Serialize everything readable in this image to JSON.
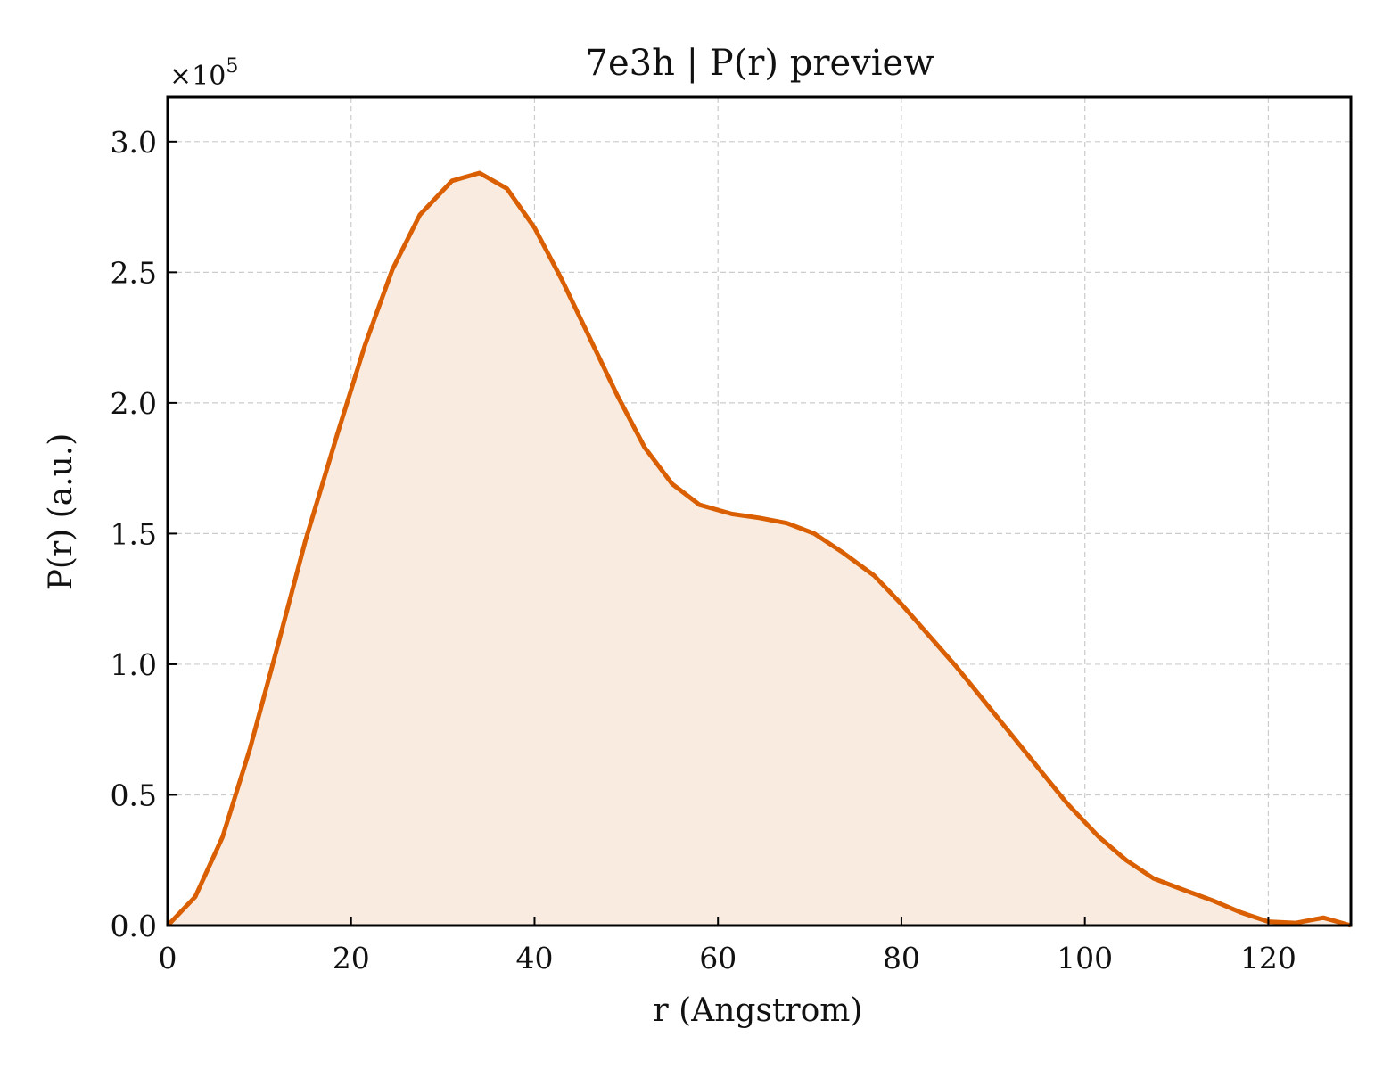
{
  "chart_data": {
    "type": "area",
    "title": "7e3h | P(r) preview",
    "xlabel": "r (Angstrom)",
    "ylabel": "P(r) (a.u.)",
    "y_multiplier_label": {
      "base": "×10",
      "exp": "5"
    },
    "xlim": [
      0,
      129
    ],
    "ylim": [
      0,
      3.17
    ],
    "x_ticks": [
      0,
      20,
      40,
      60,
      80,
      100,
      120
    ],
    "x_tick_labels": [
      "0",
      "20",
      "40",
      "60",
      "80",
      "100",
      "120"
    ],
    "y_ticks": [
      0,
      0.5,
      1.0,
      1.5,
      2.0,
      2.5,
      3.0
    ],
    "y_tick_labels": [
      "0.0",
      "0.5",
      "1.0",
      "1.5",
      "2.0",
      "2.5",
      "3.0"
    ],
    "grid": true,
    "line_color": "#d95f02",
    "fill_color": "#f9ebe0",
    "series": [
      {
        "x": [
          0,
          3,
          6,
          9,
          12,
          15,
          18.5,
          21.5,
          24.5,
          27.5,
          31,
          34,
          37,
          40,
          43,
          46,
          49,
          52,
          55,
          58,
          61.5,
          64.5,
          67.5,
          70.5,
          73.5,
          77,
          80,
          83,
          86,
          89,
          92,
          95,
          98,
          101.5,
          104.5,
          107.5,
          110.5,
          114,
          117,
          120,
          123,
          126,
          129
        ],
        "y": [
          0.0,
          0.11,
          0.34,
          0.68,
          1.07,
          1.47,
          1.88,
          2.22,
          2.51,
          2.72,
          2.85,
          2.88,
          2.82,
          2.67,
          2.47,
          2.25,
          2.03,
          1.83,
          1.69,
          1.61,
          1.575,
          1.56,
          1.54,
          1.5,
          1.43,
          1.34,
          1.23,
          1.11,
          0.99,
          0.86,
          0.73,
          0.6,
          0.47,
          0.34,
          0.25,
          0.18,
          0.14,
          0.095,
          0.05,
          0.015,
          0.01,
          0.03,
          0.0
        ]
      }
    ]
  }
}
